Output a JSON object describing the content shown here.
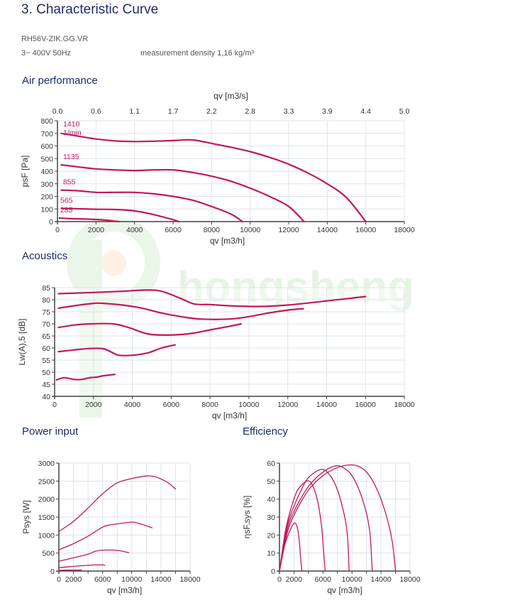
{
  "header": {
    "title": "3.  Characteristic Curve",
    "model": "RH56V-ZIK.GG.VR",
    "supply": "3~ 400V 50Hz",
    "density": "measurement density 1,16 kg/m³"
  },
  "watermark": {
    "text": "hongsheng",
    "color": "#cdeccd"
  },
  "colors": {
    "curve": "#c2185b",
    "grid": "#dde3ec",
    "axis": "#444444",
    "title": "#1f2a6b"
  },
  "chart_data": [
    {
      "id": "air",
      "section_title": "Air performance",
      "type": "line",
      "xlabel": "qv [m3/h]",
      "ylabel": "psF [Pa]",
      "x2label": "qv [m3/s]",
      "xlim": [
        0,
        18000
      ],
      "ylim": [
        0,
        800
      ],
      "xticks": [
        0,
        2000,
        4000,
        6000,
        8000,
        10000,
        12000,
        14000,
        16000,
        18000
      ],
      "yticks": [
        0,
        100,
        200,
        300,
        400,
        500,
        600,
        700,
        800
      ],
      "x2ticks": [
        "0.0",
        "0.6",
        "1.1",
        "1.7",
        "2.2",
        "2.8",
        "3.3",
        "3.9",
        "4.4",
        "5.0"
      ],
      "grid": true,
      "series": [
        {
          "name": "1410 1/min",
          "label": "1410",
          "label2": "1/min",
          "points": [
            [
              200,
              700
            ],
            [
              1000,
              680
            ],
            [
              2000,
              655
            ],
            [
              3000,
              640
            ],
            [
              4000,
              635
            ],
            [
              5000,
              638
            ],
            [
              6000,
              643
            ],
            [
              7000,
              648
            ],
            [
              8000,
              620
            ],
            [
              9000,
              590
            ],
            [
              10000,
              555
            ],
            [
              11000,
              510
            ],
            [
              12000,
              455
            ],
            [
              13000,
              385
            ],
            [
              14000,
              300
            ],
            [
              15000,
              190
            ],
            [
              16000,
              0
            ]
          ]
        },
        {
          "name": "1135",
          "label": "1135",
          "points": [
            [
              200,
              450
            ],
            [
              1000,
              435
            ],
            [
              2000,
              418
            ],
            [
              3000,
              410
            ],
            [
              4000,
              405
            ],
            [
              5000,
              410
            ],
            [
              6000,
              410
            ],
            [
              7000,
              390
            ],
            [
              8000,
              360
            ],
            [
              9000,
              320
            ],
            [
              10000,
              265
            ],
            [
              11000,
              200
            ],
            [
              12000,
              120
            ],
            [
              12800,
              0
            ]
          ]
        },
        {
          "name": "855",
          "label": "855",
          "points": [
            [
              200,
              250
            ],
            [
              1000,
              245
            ],
            [
              2000,
              232
            ],
            [
              3000,
              232
            ],
            [
              4000,
              232
            ],
            [
              5000,
              220
            ],
            [
              6000,
              200
            ],
            [
              7000,
              170
            ],
            [
              8000,
              120
            ],
            [
              9000,
              60
            ],
            [
              9600,
              0
            ]
          ]
        },
        {
          "name": "565",
          "label": "565",
          "points": [
            [
              200,
              105
            ],
            [
              1000,
              102
            ],
            [
              2000,
              98
            ],
            [
              3000,
              96
            ],
            [
              4000,
              85
            ],
            [
              5000,
              55
            ],
            [
              6000,
              15
            ],
            [
              6300,
              0
            ]
          ]
        },
        {
          "name": "285",
          "label": "285",
          "points": [
            [
              100,
              28
            ],
            [
              500,
              25
            ],
            [
              1000,
              22
            ],
            [
              1500,
              20
            ],
            [
              2000,
              17
            ],
            [
              2500,
              12
            ],
            [
              3000,
              3
            ],
            [
              3200,
              0
            ]
          ]
        }
      ]
    },
    {
      "id": "acoustics",
      "section_title": "Acoustics",
      "type": "line",
      "xlabel": "qv [m3/h]",
      "ylabel": "Lw(A),5 [dB]",
      "xlim": [
        0,
        18000
      ],
      "ylim": [
        40,
        85
      ],
      "xticks": [
        0,
        2000,
        4000,
        6000,
        8000,
        10000,
        12000,
        14000,
        16000,
        18000
      ],
      "yticks": [
        40,
        45,
        50,
        55,
        60,
        65,
        70,
        75,
        80,
        85
      ],
      "grid": true,
      "series": [
        {
          "name": "1410 1/min",
          "points": [
            [
              200,
              82.5
            ],
            [
              2000,
              83
            ],
            [
              3500,
              83.5
            ],
            [
              4700,
              84
            ],
            [
              5500,
              83.5
            ],
            [
              6500,
              80.5
            ],
            [
              7200,
              78.2
            ],
            [
              8000,
              78
            ],
            [
              9000,
              77.5
            ],
            [
              10500,
              77.2
            ],
            [
              12000,
              77.8
            ],
            [
              14000,
              79.5
            ],
            [
              16000,
              81.3
            ]
          ]
        },
        {
          "name": "1135",
          "points": [
            [
              200,
              76.5
            ],
            [
              1000,
              77.5
            ],
            [
              2000,
              78.5
            ],
            [
              2500,
              78.5
            ],
            [
              3500,
              77.8
            ],
            [
              4500,
              76.5
            ],
            [
              5500,
              74.5
            ],
            [
              6500,
              73
            ],
            [
              7500,
              72
            ],
            [
              9000,
              72
            ],
            [
              10000,
              73
            ],
            [
              11000,
              74.5
            ],
            [
              12000,
              75.7
            ],
            [
              12800,
              76.3
            ]
          ]
        },
        {
          "name": "855",
          "points": [
            [
              200,
              68.5
            ],
            [
              1000,
              69.5
            ],
            [
              1800,
              70
            ],
            [
              3000,
              70
            ],
            [
              3800,
              68.5
            ],
            [
              4500,
              66.5
            ],
            [
              5000,
              65.6
            ],
            [
              6000,
              65.4
            ],
            [
              7000,
              66
            ],
            [
              8000,
              67.5
            ],
            [
              9000,
              69
            ],
            [
              9600,
              70
            ]
          ]
        },
        {
          "name": "565",
          "points": [
            [
              200,
              58.5
            ],
            [
              1000,
              59.2
            ],
            [
              1800,
              59.8
            ],
            [
              2500,
              59.7
            ],
            [
              3000,
              58
            ],
            [
              3300,
              57
            ],
            [
              4000,
              57
            ],
            [
              4800,
              58
            ],
            [
              5500,
              60
            ],
            [
              6200,
              61.3
            ]
          ]
        },
        {
          "name": "285",
          "points": [
            [
              100,
              46.8
            ],
            [
              500,
              47.7
            ],
            [
              1000,
              47
            ],
            [
              1400,
              47
            ],
            [
              1800,
              47.7
            ],
            [
              2200,
              48
            ],
            [
              2500,
              48.5
            ],
            [
              3100,
              49.1
            ]
          ]
        }
      ]
    },
    {
      "id": "power",
      "section_title": "Power input",
      "type": "line",
      "xlabel": "qv [m3/h]",
      "ylabel": "Psys [W]",
      "xlim": [
        0,
        18000
      ],
      "ylim": [
        0,
        3000
      ],
      "xticks": [
        0,
        2000,
        4000,
        6000,
        8000,
        10000,
        12000,
        14000,
        16000,
        18000
      ],
      "xticklabels": [
        "0",
        "2000",
        "",
        "6000",
        "",
        "10000",
        "",
        "14000",
        "",
        "18000"
      ],
      "yticks": [
        0,
        500,
        1000,
        1500,
        2000,
        2500,
        3000
      ],
      "grid": true,
      "series": [
        {
          "name": "1410 1/min",
          "points": [
            [
              0,
              1100
            ],
            [
              2000,
              1380
            ],
            [
              4000,
              1750
            ],
            [
              6000,
              2150
            ],
            [
              8000,
              2450
            ],
            [
              10000,
              2570
            ],
            [
              12000,
              2640
            ],
            [
              13000,
              2630
            ],
            [
              14000,
              2560
            ],
            [
              15000,
              2450
            ],
            [
              16000,
              2280
            ]
          ]
        },
        {
          "name": "1135",
          "points": [
            [
              0,
              590
            ],
            [
              2000,
              760
            ],
            [
              4000,
              970
            ],
            [
              6000,
              1220
            ],
            [
              7000,
              1280
            ],
            [
              8000,
              1310
            ],
            [
              10000,
              1360
            ],
            [
              11000,
              1320
            ],
            [
              12000,
              1260
            ],
            [
              12800,
              1200
            ]
          ]
        },
        {
          "name": "855",
          "points": [
            [
              0,
              270
            ],
            [
              2000,
              370
            ],
            [
              4000,
              470
            ],
            [
              5000,
              550
            ],
            [
              6000,
              580
            ],
            [
              7000,
              585
            ],
            [
              8000,
              575
            ],
            [
              9000,
              540
            ],
            [
              9600,
              510
            ]
          ]
        },
        {
          "name": "565",
          "points": [
            [
              0,
              95
            ],
            [
              2000,
              130
            ],
            [
              4000,
              160
            ],
            [
              5000,
              170
            ],
            [
              6000,
              170
            ],
            [
              6300,
              155
            ]
          ]
        },
        {
          "name": "285",
          "points": [
            [
              0,
              20
            ],
            [
              1000,
              25
            ],
            [
              2000,
              28
            ],
            [
              3100,
              25
            ]
          ]
        }
      ]
    },
    {
      "id": "efficiency",
      "section_title": "Efficiency",
      "type": "line",
      "xlabel": "qv [m3/h]",
      "ylabel": "ηsF,sys [%]",
      "xlim": [
        0,
        18000
      ],
      "ylim": [
        0,
        60
      ],
      "xticks": [
        0,
        2000,
        4000,
        6000,
        8000,
        10000,
        12000,
        14000,
        16000,
        18000
      ],
      "xticklabels": [
        "0",
        "2000",
        "",
        "6000",
        "",
        "10000",
        "",
        "14000",
        "",
        "18000"
      ],
      "yticks": [
        0,
        10,
        20,
        30,
        40,
        50,
        60
      ],
      "grid": true,
      "series": [
        {
          "name": "1410 1/min",
          "points": [
            [
              0,
              0
            ],
            [
              1000,
              20
            ],
            [
              2000,
              31
            ],
            [
              4000,
              45
            ],
            [
              6000,
              53
            ],
            [
              8000,
              57.5
            ],
            [
              9800,
              59
            ],
            [
              11000,
              58
            ],
            [
              12000,
              55
            ],
            [
              13000,
              49
            ],
            [
              14000,
              40
            ],
            [
              15000,
              27
            ],
            [
              15600,
              15
            ],
            [
              16000,
              0
            ]
          ]
        },
        {
          "name": "1135",
          "points": [
            [
              0,
              0
            ],
            [
              1000,
              22
            ],
            [
              2000,
              33
            ],
            [
              4000,
              47
            ],
            [
              6000,
              55
            ],
            [
              7800,
              58.5
            ],
            [
              9000,
              57
            ],
            [
              10000,
              53
            ],
            [
              11000,
              45
            ],
            [
              12000,
              32
            ],
            [
              12500,
              20
            ],
            [
              12800,
              0
            ]
          ]
        },
        {
          "name": "855",
          "points": [
            [
              0,
              0
            ],
            [
              1000,
              24
            ],
            [
              2000,
              36
            ],
            [
              3000,
              45
            ],
            [
              4000,
              52
            ],
            [
              5800,
              56.5
            ],
            [
              7000,
              53
            ],
            [
              8000,
              45
            ],
            [
              9000,
              30
            ],
            [
              9400,
              18
            ],
            [
              9600,
              0
            ]
          ]
        },
        {
          "name": "565",
          "points": [
            [
              0,
              0
            ],
            [
              800,
              22
            ],
            [
              1600,
              35
            ],
            [
              2500,
              45
            ],
            [
              3800,
              50
            ],
            [
              4500,
              48
            ],
            [
              5200,
              40
            ],
            [
              5800,
              25
            ],
            [
              6100,
              10
            ],
            [
              6300,
              0
            ]
          ]
        },
        {
          "name": "285",
          "points": [
            [
              0,
              0
            ],
            [
              700,
              14
            ],
            [
              1400,
              22
            ],
            [
              2000,
              26.5
            ],
            [
              2400,
              25
            ],
            [
              2700,
              18
            ],
            [
              2900,
              8
            ],
            [
              3100,
              0
            ]
          ]
        }
      ]
    }
  ]
}
